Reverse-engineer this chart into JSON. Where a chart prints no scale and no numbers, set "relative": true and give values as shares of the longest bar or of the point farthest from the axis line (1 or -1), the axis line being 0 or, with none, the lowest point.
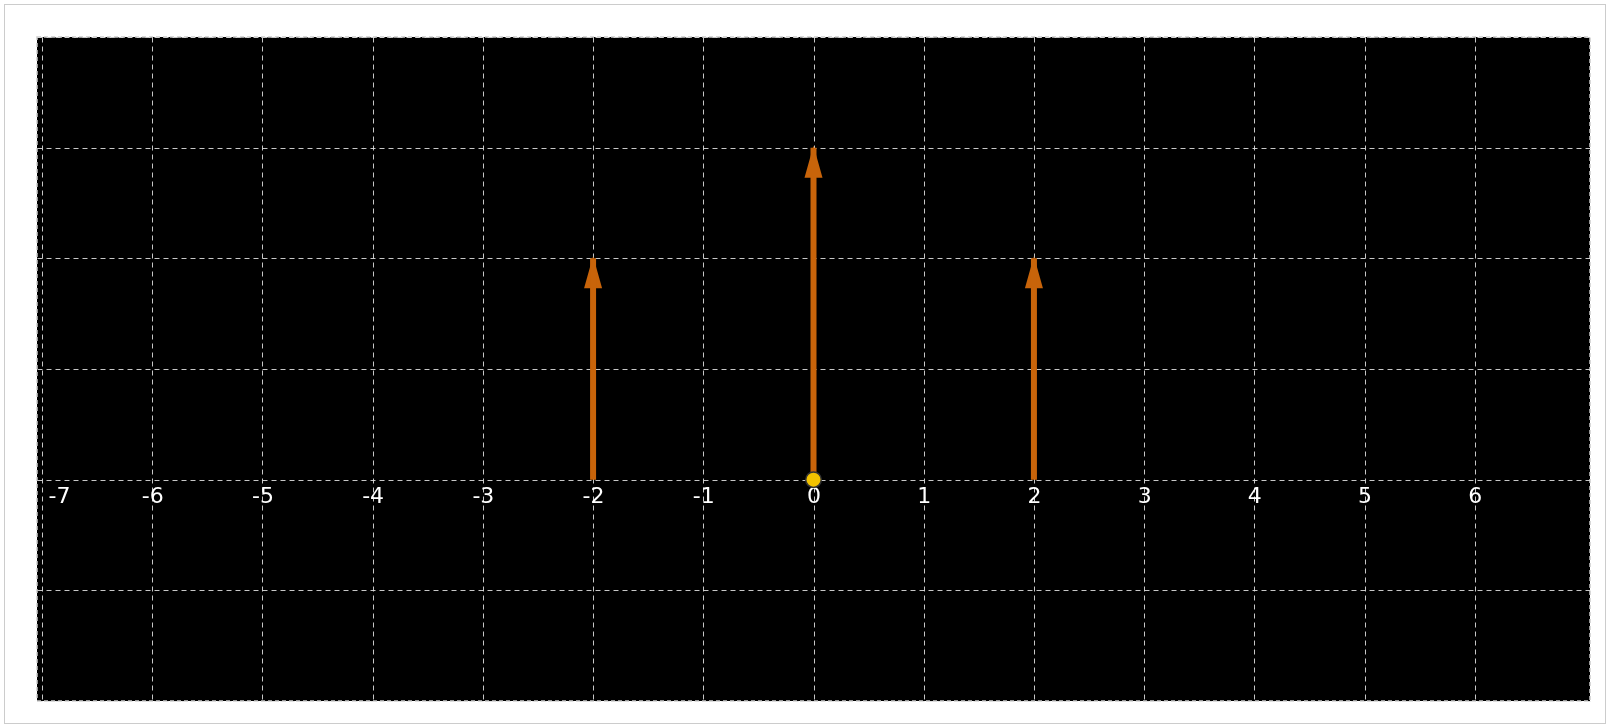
{
  "chart_data": {
    "type": "bar",
    "x": [
      -2,
      0,
      2
    ],
    "series": [
      {
        "color": "#c8640a",
        "values": [
          0.667,
          1,
          0.667
        ]
      },
      {
        "type": "scatter",
        "color": "#f2c200",
        "x": [
          0
        ],
        "values": [
          0
        ]
      }
    ],
    "relative": true,
    "xlim": [
      -7,
      7
    ],
    "xticks": [
      -7,
      -6,
      -5,
      -4,
      -3,
      -2,
      -1,
      0,
      1,
      2,
      3,
      4,
      5,
      6
    ],
    "grid": true,
    "tick_labels": "x"
  }
}
